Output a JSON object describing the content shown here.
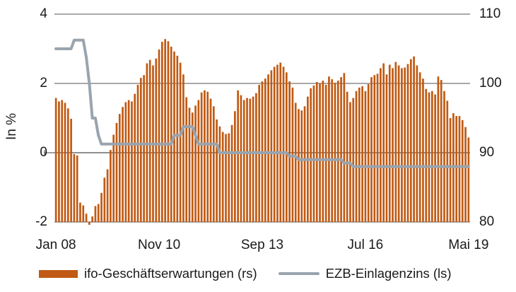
{
  "chart_data": {
    "type": "bar",
    "subtype": "combo-bar-line-dual-axis",
    "frequency": "monthly",
    "x_start": "Jan 2008",
    "x_end": "Mai 2019",
    "x_axis": {
      "tick_labels": [
        "Jan 08",
        "Nov 10",
        "Sep 13",
        "Jul 16",
        "Mai 19"
      ],
      "tick_month_index": [
        0,
        34,
        68,
        102,
        136
      ]
    },
    "left_axis": {
      "title": "In %",
      "tick_labels": [
        "4",
        "2",
        "0",
        "-2"
      ],
      "ticks": [
        4,
        2,
        0,
        -2
      ],
      "range": [
        -2,
        4
      ]
    },
    "right_axis": {
      "tick_labels": [
        "110",
        "100",
        "90",
        "80"
      ],
      "ticks": [
        110,
        100,
        90,
        80
      ],
      "range": [
        80,
        110
      ]
    },
    "grid": "horizontal",
    "legend_position": "bottom",
    "colors": {
      "bar": "#C05A14",
      "line": "#99A4AE",
      "gridline": "#8C8C8C",
      "zero_axis": "#7F7F7F",
      "text": "#1a1a1a",
      "background": "#ffffff"
    },
    "series": [
      {
        "name": "ifo-Geschäftserwartungen (rs)",
        "type": "bar",
        "axis": "right",
        "color": "#C05A14",
        "values": [
          97.9,
          97.4,
          97.6,
          97.2,
          96.4,
          94.9,
          89.8,
          89.6,
          82.8,
          82.4,
          81.2,
          79.6,
          80.8,
          82.3,
          82.6,
          84.2,
          86.4,
          87.6,
          90.4,
          92.6,
          94.3,
          95.6,
          96.6,
          97.3,
          97.6,
          97.4,
          98.5,
          99.8,
          100.8,
          101.2,
          102.9,
          103.4,
          102.6,
          103.6,
          104.9,
          106.0,
          106.4,
          106.1,
          105.3,
          104.6,
          104.0,
          103.0,
          101.3,
          98.0,
          96.5,
          95.8,
          96.8,
          97.6,
          98.7,
          99.0,
          98.8,
          97.8,
          96.7,
          94.8,
          93.8,
          93.0,
          92.7,
          92.8,
          94.0,
          96.0,
          99.0,
          98.3,
          97.6,
          97.9,
          97.8,
          98.1,
          98.6,
          99.8,
          100.3,
          100.7,
          101.3,
          101.9,
          102.4,
          102.7,
          103.0,
          102.4,
          101.6,
          100.3,
          99.4,
          97.2,
          96.3,
          96.1,
          96.7,
          98.1,
          99.3,
          99.7,
          100.2,
          100.0,
          100.4,
          99.8,
          101.0,
          100.6,
          100.1,
          100.4,
          100.9,
          101.5,
          98.8,
          97.3,
          97.9,
          98.9,
          99.4,
          99.6,
          98.9,
          99.9,
          100.9,
          101.2,
          101.4,
          102.2,
          102.9,
          101.3,
          102.7,
          102.2,
          103.1,
          102.6,
          102.2,
          102.3,
          102.8,
          103.5,
          103.9,
          102.6,
          101.6,
          100.7,
          99.2,
          98.7,
          98.9,
          98.4,
          101.0,
          100.5,
          98.9,
          97.5,
          95.0,
          95.7,
          95.3,
          95.3,
          94.7,
          93.7,
          92.2
        ]
      },
      {
        "name": "EZB-Einlagenzins (ls)",
        "type": "line",
        "axis": "left",
        "color": "#99A4AE",
        "values": [
          3.0,
          3.0,
          3.0,
          3.0,
          3.0,
          3.0,
          3.25,
          3.25,
          3.25,
          3.25,
          2.75,
          2.0,
          1.0,
          1.0,
          0.5,
          0.25,
          0.25,
          0.25,
          0.25,
          0.25,
          0.25,
          0.25,
          0.25,
          0.25,
          0.25,
          0.25,
          0.25,
          0.25,
          0.25,
          0.25,
          0.25,
          0.25,
          0.25,
          0.25,
          0.25,
          0.25,
          0.25,
          0.25,
          0.25,
          0.5,
          0.5,
          0.5,
          0.75,
          0.75,
          0.75,
          0.75,
          0.5,
          0.25,
          0.25,
          0.25,
          0.25,
          0.25,
          0.25,
          0.25,
          0.0,
          0.0,
          0.0,
          0.0,
          0.0,
          0.0,
          0.0,
          0.0,
          0.0,
          0.0,
          0.0,
          0.0,
          0.0,
          0.0,
          0.0,
          0.0,
          0.0,
          0.0,
          0.0,
          0.0,
          0.0,
          0.0,
          0.0,
          -0.1,
          -0.1,
          -0.1,
          -0.2,
          -0.2,
          -0.2,
          -0.2,
          -0.2,
          -0.2,
          -0.2,
          -0.2,
          -0.2,
          -0.2,
          -0.2,
          -0.2,
          -0.2,
          -0.2,
          -0.2,
          -0.3,
          -0.3,
          -0.3,
          -0.4,
          -0.4,
          -0.4,
          -0.4,
          -0.4,
          -0.4,
          -0.4,
          -0.4,
          -0.4,
          -0.4,
          -0.4,
          -0.4,
          -0.4,
          -0.4,
          -0.4,
          -0.4,
          -0.4,
          -0.4,
          -0.4,
          -0.4,
          -0.4,
          -0.4,
          -0.4,
          -0.4,
          -0.4,
          -0.4,
          -0.4,
          -0.4,
          -0.4,
          -0.4,
          -0.4,
          -0.4,
          -0.4,
          -0.4,
          -0.4,
          -0.4,
          -0.4,
          -0.4,
          -0.4
        ]
      }
    ]
  },
  "legend": {
    "items": [
      {
        "label": "ifo-Geschäftserwartungen (rs)",
        "swatch": "bar-rectangle-orange"
      },
      {
        "label": "EZB-Einlagenzins (ls)",
        "swatch": "line-gray"
      }
    ]
  }
}
